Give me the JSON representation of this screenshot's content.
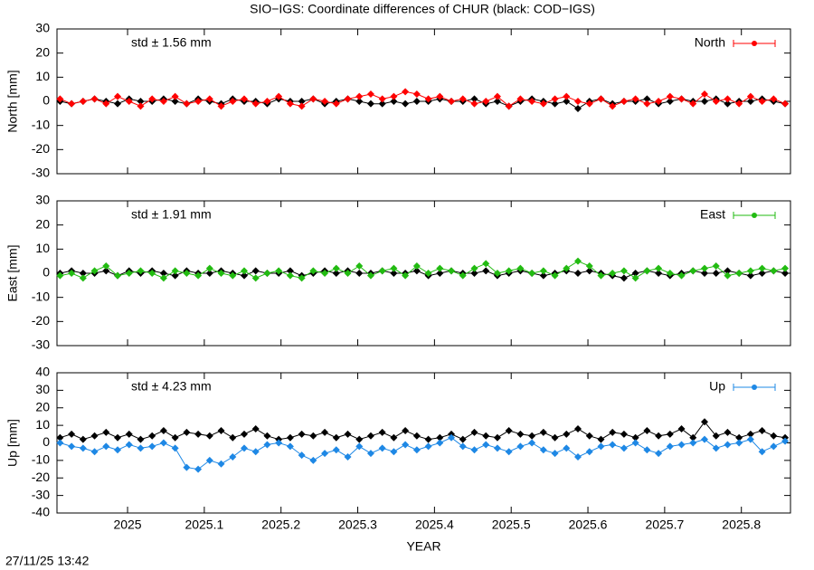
{
  "title": "SIO−IGS: Coordinate differences of CHUR (black: COD−IGS)",
  "timestamp": "27/11/25 13:42",
  "chart_data": [
    {
      "type": "line",
      "ylabel": "North [mm]",
      "annotation": "std ± 1.56 mm",
      "xlim": [
        2024.908,
        2025.864
      ],
      "xticks": [
        2025,
        2025.1,
        2025.2,
        2025.3,
        2025.4,
        2025.5,
        2025.6,
        2025.7,
        2025.8
      ],
      "ylim": [
        -30,
        30
      ],
      "yticks": [
        -30,
        -20,
        -10,
        0,
        10,
        20,
        30
      ],
      "x": [
        2024.912,
        2024.927,
        2024.942,
        2024.957,
        2024.972,
        2024.987,
        2025.002,
        2025.017,
        2025.032,
        2025.047,
        2025.062,
        2025.077,
        2025.092,
        2025.107,
        2025.122,
        2025.137,
        2025.152,
        2025.167,
        2025.182,
        2025.197,
        2025.212,
        2025.227,
        2025.242,
        2025.257,
        2025.272,
        2025.287,
        2025.302,
        2025.317,
        2025.332,
        2025.347,
        2025.362,
        2025.377,
        2025.392,
        2025.407,
        2025.422,
        2025.437,
        2025.452,
        2025.467,
        2025.482,
        2025.497,
        2025.512,
        2025.527,
        2025.542,
        2025.557,
        2025.572,
        2025.587,
        2025.602,
        2025.617,
        2025.632,
        2025.647,
        2025.662,
        2025.677,
        2025.692,
        2025.707,
        2025.722,
        2025.737,
        2025.752,
        2025.767,
        2025.782,
        2025.797,
        2025.812,
        2025.827,
        2025.842,
        2025.857
      ],
      "series": [
        {
          "color": "#000000",
          "values": [
            0,
            -1,
            0,
            1,
            0,
            -1,
            1,
            0,
            0,
            1,
            0,
            -1,
            1,
            0,
            -1,
            1,
            0,
            0,
            -1,
            1,
            0,
            0,
            1,
            -1,
            0,
            1,
            0,
            -1,
            -1,
            0,
            -1,
            0,
            0,
            1,
            0,
            0,
            1,
            -1,
            0,
            -2,
            0,
            1,
            0,
            -1,
            0,
            -3,
            0,
            1,
            -1,
            0,
            0,
            1,
            -1,
            0,
            1,
            0,
            0,
            1,
            -1,
            0,
            0,
            1,
            0,
            -1
          ]
        },
        {
          "name": "North",
          "color": "#ff0000",
          "values": [
            1,
            -1,
            0,
            1,
            -1,
            2,
            0,
            -2,
            1,
            0,
            2,
            -1,
            0,
            1,
            -2,
            0,
            1,
            -1,
            0,
            2,
            -1,
            -2,
            1,
            0,
            -1,
            1,
            2,
            3,
            1,
            2,
            4,
            3,
            1,
            2,
            0,
            1,
            -1,
            0,
            2,
            -2,
            1,
            0,
            -1,
            1,
            2,
            0,
            -1,
            1,
            -2,
            0,
            1,
            -1,
            0,
            2,
            1,
            -1,
            3,
            0,
            1,
            -1,
            2,
            0,
            1,
            -1
          ]
        }
      ]
    },
    {
      "type": "line",
      "ylabel": "East [mm]",
      "annotation": "std ± 1.91 mm",
      "xlim": [
        2024.908,
        2025.864
      ],
      "xticks": [
        2025,
        2025.1,
        2025.2,
        2025.3,
        2025.4,
        2025.5,
        2025.6,
        2025.7,
        2025.8
      ],
      "ylim": [
        -30,
        30
      ],
      "yticks": [
        -30,
        -20,
        -10,
        0,
        10,
        20,
        30
      ],
      "x": [
        2024.912,
        2024.927,
        2024.942,
        2024.957,
        2024.972,
        2024.987,
        2025.002,
        2025.017,
        2025.032,
        2025.047,
        2025.062,
        2025.077,
        2025.092,
        2025.107,
        2025.122,
        2025.137,
        2025.152,
        2025.167,
        2025.182,
        2025.197,
        2025.212,
        2025.227,
        2025.242,
        2025.257,
        2025.272,
        2025.287,
        2025.302,
        2025.317,
        2025.332,
        2025.347,
        2025.362,
        2025.377,
        2025.392,
        2025.407,
        2025.422,
        2025.437,
        2025.452,
        2025.467,
        2025.482,
        2025.497,
        2025.512,
        2025.527,
        2025.542,
        2025.557,
        2025.572,
        2025.587,
        2025.602,
        2025.617,
        2025.632,
        2025.647,
        2025.662,
        2025.677,
        2025.692,
        2025.707,
        2025.722,
        2025.737,
        2025.752,
        2025.767,
        2025.782,
        2025.797,
        2025.812,
        2025.827,
        2025.842,
        2025.857
      ],
      "series": [
        {
          "color": "#000000",
          "values": [
            0,
            1,
            0,
            0,
            1,
            -1,
            1,
            0,
            1,
            0,
            -1,
            1,
            0,
            0,
            1,
            0,
            -1,
            1,
            0,
            0,
            1,
            -1,
            0,
            1,
            0,
            1,
            0,
            0,
            1,
            0,
            0,
            1,
            -1,
            0,
            1,
            0,
            0,
            1,
            -1,
            0,
            1,
            0,
            -1,
            0,
            1,
            0,
            1,
            0,
            -1,
            -2,
            0,
            1,
            0,
            -1,
            0,
            1,
            0,
            0,
            1,
            0,
            -1,
            0,
            1,
            0
          ]
        },
        {
          "name": "East",
          "color": "#22bb11",
          "values": [
            -1,
            0,
            -2,
            1,
            3,
            -1,
            0,
            1,
            0,
            -2,
            1,
            0,
            -1,
            2,
            0,
            -1,
            1,
            -2,
            0,
            1,
            -1,
            -2,
            1,
            0,
            2,
            0,
            3,
            -1,
            1,
            2,
            -1,
            3,
            0,
            2,
            1,
            -1,
            2,
            4,
            0,
            1,
            2,
            0,
            1,
            -1,
            2,
            5,
            3,
            -1,
            0,
            1,
            -2,
            1,
            2,
            0,
            -1,
            1,
            2,
            3,
            -1,
            0,
            1,
            2,
            1,
            2
          ]
        }
      ]
    },
    {
      "type": "line",
      "ylabel": "Up [mm]",
      "xlabel": "YEAR",
      "annotation": "std ± 4.23 mm",
      "xlim": [
        2024.908,
        2025.864
      ],
      "xticks": [
        2025,
        2025.1,
        2025.2,
        2025.3,
        2025.4,
        2025.5,
        2025.6,
        2025.7,
        2025.8
      ],
      "ylim": [
        -40,
        40
      ],
      "yticks": [
        -40,
        -30,
        -20,
        -10,
        0,
        10,
        20,
        30,
        40
      ],
      "x": [
        2024.912,
        2024.927,
        2024.942,
        2024.957,
        2024.972,
        2024.987,
        2025.002,
        2025.017,
        2025.032,
        2025.047,
        2025.062,
        2025.077,
        2025.092,
        2025.107,
        2025.122,
        2025.137,
        2025.152,
        2025.167,
        2025.182,
        2025.197,
        2025.212,
        2025.227,
        2025.242,
        2025.257,
        2025.272,
        2025.287,
        2025.302,
        2025.317,
        2025.332,
        2025.347,
        2025.362,
        2025.377,
        2025.392,
        2025.407,
        2025.422,
        2025.437,
        2025.452,
        2025.467,
        2025.482,
        2025.497,
        2025.512,
        2025.527,
        2025.542,
        2025.557,
        2025.572,
        2025.587,
        2025.602,
        2025.617,
        2025.632,
        2025.647,
        2025.662,
        2025.677,
        2025.692,
        2025.707,
        2025.722,
        2025.737,
        2025.752,
        2025.767,
        2025.782,
        2025.797,
        2025.812,
        2025.827,
        2025.842,
        2025.857
      ],
      "series": [
        {
          "color": "#000000",
          "values": [
            3,
            5,
            2,
            4,
            6,
            3,
            5,
            2,
            4,
            7,
            3,
            6,
            5,
            4,
            7,
            3,
            5,
            8,
            4,
            2,
            3,
            5,
            4,
            6,
            3,
            5,
            2,
            4,
            6,
            3,
            7,
            4,
            2,
            3,
            5,
            2,
            6,
            4,
            3,
            7,
            5,
            4,
            6,
            3,
            5,
            8,
            4,
            2,
            6,
            5,
            3,
            7,
            4,
            5,
            8,
            3,
            12,
            4,
            6,
            3,
            5,
            7,
            4,
            3
          ]
        },
        {
          "name": "Up",
          "color": "#1e88e5",
          "values": [
            0,
            -2,
            -3,
            -5,
            -2,
            -4,
            -1,
            -3,
            -2,
            0,
            -3,
            -14,
            -15,
            -10,
            -12,
            -8,
            -3,
            -5,
            -1,
            0,
            -2,
            -7,
            -10,
            -6,
            -4,
            -8,
            -2,
            -6,
            -3,
            -5,
            -1,
            -4,
            -2,
            0,
            3,
            -2,
            -4,
            -1,
            -3,
            -5,
            -2,
            0,
            -4,
            -6,
            -3,
            -8,
            -5,
            -2,
            -1,
            -3,
            0,
            -4,
            -6,
            -2,
            -1,
            0,
            2,
            -3,
            -1,
            0,
            2,
            -5,
            -2,
            1
          ]
        }
      ]
    }
  ]
}
